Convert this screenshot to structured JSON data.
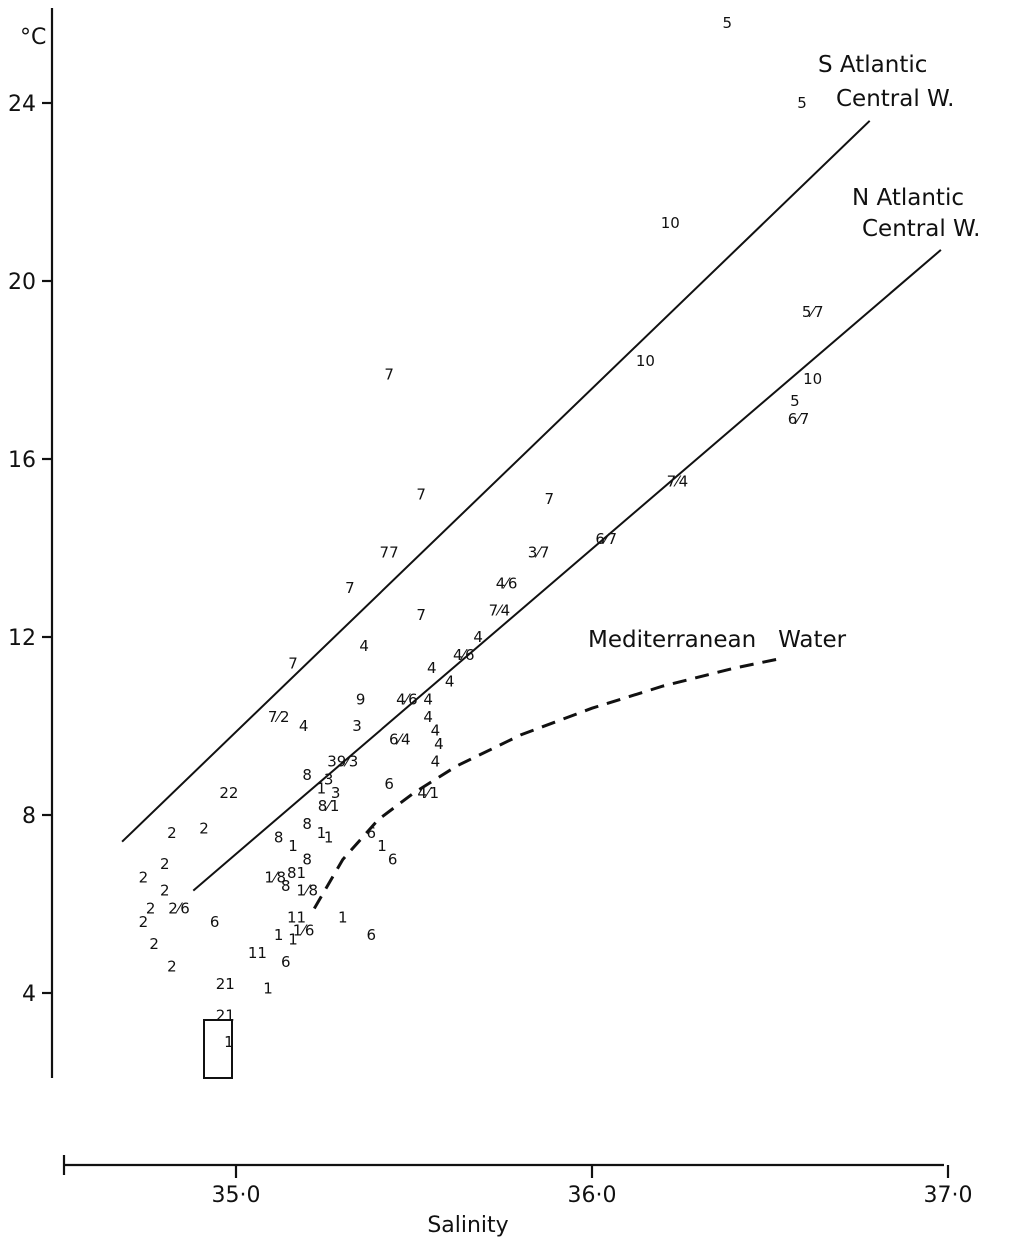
{
  "chart_data": {
    "type": "scatter",
    "title": "",
    "xlabel": "Salinity",
    "ylabel": "°C",
    "xlim": [
      34.5,
      37.0
    ],
    "ylim": [
      2.0,
      26.5
    ],
    "grid": false,
    "x_ticks": [
      {
        "value": 35.0,
        "label": "35·0"
      },
      {
        "value": 36.0,
        "label": "36·0"
      },
      {
        "value": 37.0,
        "label": "37·0"
      }
    ],
    "y_ticks": [
      {
        "value": 4,
        "label": "4"
      },
      {
        "value": 8,
        "label": "8"
      },
      {
        "value": 12,
        "label": "12"
      },
      {
        "value": 16,
        "label": "16"
      },
      {
        "value": 20,
        "label": "20"
      },
      {
        "value": 24,
        "label": "24"
      }
    ],
    "series": [
      {
        "name": "S Atlantic Central W.",
        "style": "solid",
        "x": [
          34.68,
          36.78
        ],
        "y": [
          7.4,
          23.6
        ]
      },
      {
        "name": "N Atlantic Central W.",
        "style": "solid",
        "x": [
          34.88,
          36.98
        ],
        "y": [
          6.3,
          20.7
        ]
      },
      {
        "name": "Mediterranean Water",
        "style": "dashed",
        "x": [
          35.22,
          35.3,
          35.4,
          35.5,
          35.62,
          35.8,
          36.0,
          36.2,
          36.4,
          36.52
        ],
        "y": [
          5.9,
          7.0,
          7.9,
          8.5,
          9.1,
          9.8,
          10.4,
          10.9,
          11.3,
          11.5
        ]
      }
    ],
    "point_labels": [
      {
        "x": 36.38,
        "y": 25.8,
        "label": "5"
      },
      {
        "x": 36.59,
        "y": 24.0,
        "label": "5"
      },
      {
        "x": 36.22,
        "y": 21.3,
        "label": "10"
      },
      {
        "x": 36.62,
        "y": 19.3,
        "label": "5⁄7"
      },
      {
        "x": 36.15,
        "y": 18.2,
        "label": "10"
      },
      {
        "x": 36.62,
        "y": 17.8,
        "label": "10"
      },
      {
        "x": 36.57,
        "y": 17.3,
        "label": "5"
      },
      {
        "x": 36.58,
        "y": 16.9,
        "label": "6⁄7"
      },
      {
        "x": 35.43,
        "y": 17.9,
        "label": "7"
      },
      {
        "x": 35.52,
        "y": 15.2,
        "label": "7"
      },
      {
        "x": 35.88,
        "y": 15.1,
        "label": "7"
      },
      {
        "x": 36.24,
        "y": 15.5,
        "label": "7⁄4"
      },
      {
        "x": 35.43,
        "y": 13.9,
        "label": "77"
      },
      {
        "x": 35.85,
        "y": 13.9,
        "label": "3⁄7"
      },
      {
        "x": 36.04,
        "y": 14.2,
        "label": "6⁄7"
      },
      {
        "x": 35.32,
        "y": 13.1,
        "label": "7"
      },
      {
        "x": 35.76,
        "y": 13.2,
        "label": "4⁄6"
      },
      {
        "x": 35.74,
        "y": 12.6,
        "label": "7⁄4"
      },
      {
        "x": 35.52,
        "y": 12.5,
        "label": "7"
      },
      {
        "x": 35.36,
        "y": 11.8,
        "label": "4"
      },
      {
        "x": 35.64,
        "y": 11.6,
        "label": "4⁄6"
      },
      {
        "x": 35.68,
        "y": 12.0,
        "label": "4"
      },
      {
        "x": 35.55,
        "y": 11.3,
        "label": "4"
      },
      {
        "x": 35.6,
        "y": 11.0,
        "label": "4"
      },
      {
        "x": 35.16,
        "y": 11.4,
        "label": "7"
      },
      {
        "x": 35.35,
        "y": 10.6,
        "label": "9"
      },
      {
        "x": 35.48,
        "y": 10.6,
        "label": "4⁄6"
      },
      {
        "x": 35.54,
        "y": 10.6,
        "label": "4"
      },
      {
        "x": 35.54,
        "y": 10.2,
        "label": "4"
      },
      {
        "x": 35.12,
        "y": 10.2,
        "label": "7⁄2"
      },
      {
        "x": 35.19,
        "y": 10.0,
        "label": "4"
      },
      {
        "x": 35.34,
        "y": 10.0,
        "label": "3"
      },
      {
        "x": 35.56,
        "y": 9.9,
        "label": "4"
      },
      {
        "x": 35.57,
        "y": 9.6,
        "label": "4"
      },
      {
        "x": 35.56,
        "y": 9.2,
        "label": "4"
      },
      {
        "x": 35.46,
        "y": 9.7,
        "label": "6⁄4"
      },
      {
        "x": 35.3,
        "y": 9.2,
        "label": "39⁄3"
      },
      {
        "x": 35.2,
        "y": 8.9,
        "label": "8"
      },
      {
        "x": 35.26,
        "y": 8.8,
        "label": "3"
      },
      {
        "x": 35.24,
        "y": 8.6,
        "label": "1"
      },
      {
        "x": 35.28,
        "y": 8.5,
        "label": "3"
      },
      {
        "x": 35.43,
        "y": 8.7,
        "label": "6"
      },
      {
        "x": 35.26,
        "y": 8.2,
        "label": "8⁄1"
      },
      {
        "x": 35.2,
        "y": 7.8,
        "label": "8"
      },
      {
        "x": 35.24,
        "y": 7.6,
        "label": "1"
      },
      {
        "x": 35.26,
        "y": 7.5,
        "label": "1"
      },
      {
        "x": 35.38,
        "y": 7.6,
        "label": "6"
      },
      {
        "x": 35.41,
        "y": 7.3,
        "label": "1"
      },
      {
        "x": 35.44,
        "y": 7.0,
        "label": "6"
      },
      {
        "x": 35.54,
        "y": 8.5,
        "label": "4⁄1"
      },
      {
        "x": 35.12,
        "y": 7.5,
        "label": "8"
      },
      {
        "x": 35.16,
        "y": 7.3,
        "label": "1"
      },
      {
        "x": 35.2,
        "y": 7.0,
        "label": "8"
      },
      {
        "x": 35.14,
        "y": 6.4,
        "label": "8"
      },
      {
        "x": 35.17,
        "y": 6.7,
        "label": "81"
      },
      {
        "x": 35.11,
        "y": 6.6,
        "label": "1⁄8"
      },
      {
        "x": 35.2,
        "y": 6.3,
        "label": "1⁄8"
      },
      {
        "x": 35.17,
        "y": 5.7,
        "label": "11"
      },
      {
        "x": 35.19,
        "y": 5.4,
        "label": "1⁄6"
      },
      {
        "x": 35.16,
        "y": 5.2,
        "label": "1"
      },
      {
        "x": 35.3,
        "y": 5.7,
        "label": "1"
      },
      {
        "x": 35.38,
        "y": 5.3,
        "label": "6"
      },
      {
        "x": 34.82,
        "y": 7.6,
        "label": "2"
      },
      {
        "x": 34.91,
        "y": 7.7,
        "label": "2"
      },
      {
        "x": 34.98,
        "y": 8.5,
        "label": "22"
      },
      {
        "x": 34.74,
        "y": 6.6,
        "label": "2"
      },
      {
        "x": 34.8,
        "y": 6.9,
        "label": "2"
      },
      {
        "x": 34.8,
        "y": 6.3,
        "label": "2"
      },
      {
        "x": 34.76,
        "y": 5.9,
        "label": "2"
      },
      {
        "x": 34.84,
        "y": 5.9,
        "label": "2⁄6"
      },
      {
        "x": 34.74,
        "y": 5.6,
        "label": "2"
      },
      {
        "x": 34.77,
        "y": 5.1,
        "label": "2"
      },
      {
        "x": 34.82,
        "y": 4.6,
        "label": "2"
      },
      {
        "x": 34.94,
        "y": 5.6,
        "label": "6"
      },
      {
        "x": 35.06,
        "y": 4.9,
        "label": "11"
      },
      {
        "x": 35.12,
        "y": 5.3,
        "label": "1"
      },
      {
        "x": 35.14,
        "y": 4.7,
        "label": "6"
      },
      {
        "x": 35.09,
        "y": 4.1,
        "label": "1"
      },
      {
        "x": 34.97,
        "y": 4.2,
        "label": "21"
      },
      {
        "x": 34.97,
        "y": 3.5,
        "label": "21"
      },
      {
        "x": 34.98,
        "y": 2.9,
        "label": "1"
      }
    ],
    "annotations": [
      "Mediterranean Water"
    ]
  }
}
